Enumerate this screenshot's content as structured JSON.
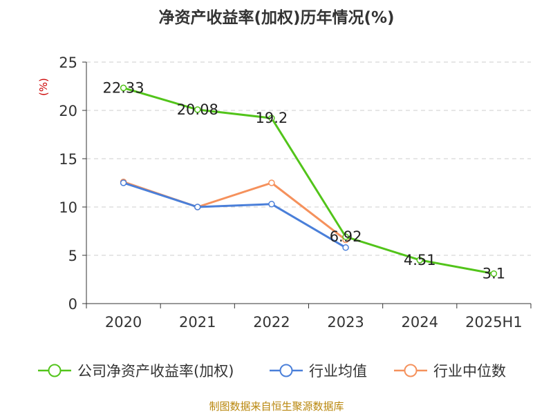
{
  "title": "净资产收益率(加权)历年情况(%)",
  "source": "制图数据来自恒生聚源数据库",
  "chart_data": {
    "type": "line",
    "ylabel": "(%)",
    "ylim": [
      0,
      25
    ],
    "yticks": [
      0,
      5,
      10,
      15,
      20,
      25
    ],
    "grid": true,
    "legend_position": "bottom",
    "categories": [
      "2020",
      "2021",
      "2022",
      "2023",
      "2024",
      "2025H1"
    ],
    "series": [
      {
        "name": "公司净资产收益率(加权)",
        "color": "#52c41a",
        "values": [
          22.33,
          20.08,
          19.2,
          6.92,
          4.51,
          3.1
        ],
        "labels": [
          "22.33",
          "20.08",
          "19.2",
          "6.92",
          "4.51",
          "3.1"
        ]
      },
      {
        "name": "行业均值",
        "color": "#4a7fd9",
        "values": [
          12.5,
          10.0,
          10.3,
          5.8,
          null,
          null
        ]
      },
      {
        "name": "行业中位数",
        "color": "#f5915c",
        "values": [
          12.6,
          10.0,
          12.5,
          6.6,
          null,
          null
        ]
      }
    ]
  }
}
